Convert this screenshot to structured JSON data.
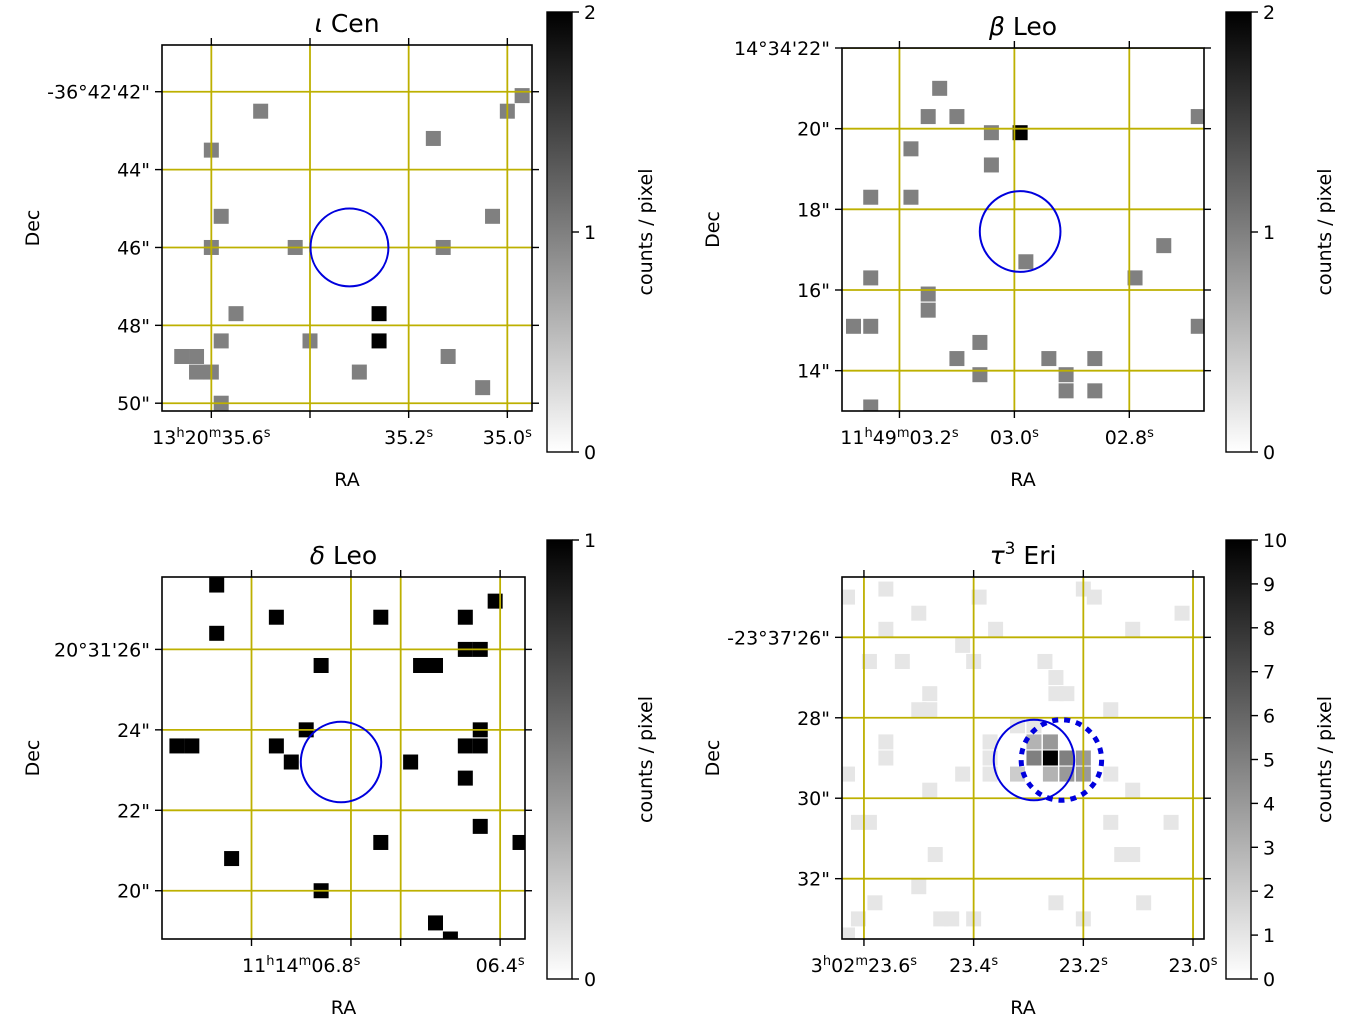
{
  "chart_data": [
    {
      "type": "heatmap",
      "title": "ι Cen",
      "title_symbol": "ι",
      "title_rest": " Cen",
      "xlabel": "RA",
      "ylabel": "Dec",
      "xticks": [
        {
          "label": "13h20m35.6s",
          "ra_s": 35.6
        },
        {
          "label": "35.2s",
          "ra_s": 35.2
        },
        {
          "label": "35.0s",
          "ra_s": 35.0
        }
      ],
      "xgrid_ra_s": [
        35.6,
        35.4,
        35.2,
        35.0
      ],
      "xlim_ra_s": [
        35.7,
        34.95
      ],
      "ylim_dec_arcsec": [
        50.2,
        40.8
      ],
      "yticks": [
        {
          "label": "-36°42'42\"",
          "dec": 42
        },
        {
          "label": "44\"",
          "dec": 44
        },
        {
          "label": "46\"",
          "dec": 46
        },
        {
          "label": "48\"",
          "dec": 48
        },
        {
          "label": "50\"",
          "dec": 50
        }
      ],
      "source_circle": {
        "ra_s": 35.32,
        "dec": 46.0,
        "radius_arcsec": 1.0
      },
      "colorbar": {
        "label": "counts / pixel",
        "min": 0,
        "max": 2,
        "ticks": [
          0,
          1,
          2
        ]
      },
      "grid": true,
      "pixels": [
        {
          "ra_s": 34.97,
          "dec": 42.1,
          "v": 1
        },
        {
          "ra_s": 35.5,
          "dec": 42.5,
          "v": 1
        },
        {
          "ra_s": 35.0,
          "dec": 42.5,
          "v": 1
        },
        {
          "ra_s": 35.15,
          "dec": 43.2,
          "v": 1
        },
        {
          "ra_s": 35.6,
          "dec": 43.5,
          "v": 1
        },
        {
          "ra_s": 35.58,
          "dec": 45.2,
          "v": 1
        },
        {
          "ra_s": 35.03,
          "dec": 45.2,
          "v": 1
        },
        {
          "ra_s": 35.6,
          "dec": 46.0,
          "v": 1
        },
        {
          "ra_s": 35.43,
          "dec": 46.0,
          "v": 1
        },
        {
          "ra_s": 35.13,
          "dec": 46.0,
          "v": 1
        },
        {
          "ra_s": 35.26,
          "dec": 47.7,
          "v": 2
        },
        {
          "ra_s": 35.55,
          "dec": 47.7,
          "v": 1
        },
        {
          "ra_s": 35.58,
          "dec": 48.4,
          "v": 1
        },
        {
          "ra_s": 35.4,
          "dec": 48.4,
          "v": 1
        },
        {
          "ra_s": 35.26,
          "dec": 48.4,
          "v": 2
        },
        {
          "ra_s": 35.66,
          "dec": 48.8,
          "v": 1
        },
        {
          "ra_s": 35.63,
          "dec": 48.8,
          "v": 1
        },
        {
          "ra_s": 35.12,
          "dec": 48.8,
          "v": 1
        },
        {
          "ra_s": 35.63,
          "dec": 49.2,
          "v": 1
        },
        {
          "ra_s": 35.6,
          "dec": 49.2,
          "v": 1
        },
        {
          "ra_s": 35.3,
          "dec": 49.2,
          "v": 1
        },
        {
          "ra_s": 35.05,
          "dec": 49.6,
          "v": 1
        },
        {
          "ra_s": 35.58,
          "dec": 50.0,
          "v": 1
        }
      ]
    },
    {
      "type": "heatmap",
      "title": "β Leo",
      "title_symbol": "β",
      "title_rest": " Leo",
      "xlabel": "RA",
      "ylabel": "Dec",
      "xticks": [
        {
          "label": "11h49m03.2s",
          "ra_s": 3.2
        },
        {
          "label": "03.0s",
          "ra_s": 3.0
        },
        {
          "label": "02.8s",
          "ra_s": 2.8
        }
      ],
      "xgrid_ra_s": [
        3.2,
        3.0,
        2.8
      ],
      "xlim_ra_s": [
        3.3,
        2.67
      ],
      "ylim_dec_arcsec": [
        13.0,
        22.0
      ],
      "yticks": [
        {
          "label": "14°34'22\"",
          "dec": 22
        },
        {
          "label": "20\"",
          "dec": 20
        },
        {
          "label": "18\"",
          "dec": 18
        },
        {
          "label": "16\"",
          "dec": 16
        },
        {
          "label": "14\"",
          "dec": 14
        }
      ],
      "source_circle": {
        "ra_s": 2.99,
        "dec": 17.45,
        "radius_arcsec": 1.0
      },
      "colorbar": {
        "label": "counts / pixel",
        "min": 0,
        "max": 2,
        "ticks": [
          0,
          1,
          2
        ]
      },
      "grid": true,
      "pixels": [
        {
          "ra_s": 3.13,
          "dec": 21.0,
          "v": 1
        },
        {
          "ra_s": 3.15,
          "dec": 20.3,
          "v": 1
        },
        {
          "ra_s": 3.1,
          "dec": 20.3,
          "v": 1
        },
        {
          "ra_s": 2.68,
          "dec": 20.3,
          "v": 1
        },
        {
          "ra_s": 3.04,
          "dec": 19.9,
          "v": 1
        },
        {
          "ra_s": 2.99,
          "dec": 19.9,
          "v": 2
        },
        {
          "ra_s": 3.18,
          "dec": 19.5,
          "v": 1
        },
        {
          "ra_s": 3.04,
          "dec": 19.1,
          "v": 1
        },
        {
          "ra_s": 3.25,
          "dec": 18.3,
          "v": 1
        },
        {
          "ra_s": 3.18,
          "dec": 18.3,
          "v": 1
        },
        {
          "ra_s": 2.74,
          "dec": 17.1,
          "v": 1
        },
        {
          "ra_s": 2.98,
          "dec": 16.7,
          "v": 1
        },
        {
          "ra_s": 3.25,
          "dec": 16.3,
          "v": 1
        },
        {
          "ra_s": 2.79,
          "dec": 16.3,
          "v": 1
        },
        {
          "ra_s": 3.15,
          "dec": 15.9,
          "v": 1
        },
        {
          "ra_s": 3.15,
          "dec": 15.5,
          "v": 1
        },
        {
          "ra_s": 3.28,
          "dec": 15.1,
          "v": 1
        },
        {
          "ra_s": 3.25,
          "dec": 15.1,
          "v": 1
        },
        {
          "ra_s": 2.68,
          "dec": 15.1,
          "v": 1
        },
        {
          "ra_s": 3.06,
          "dec": 14.7,
          "v": 1
        },
        {
          "ra_s": 3.1,
          "dec": 14.3,
          "v": 1
        },
        {
          "ra_s": 2.94,
          "dec": 14.3,
          "v": 1
        },
        {
          "ra_s": 2.86,
          "dec": 14.3,
          "v": 1
        },
        {
          "ra_s": 3.06,
          "dec": 13.9,
          "v": 1
        },
        {
          "ra_s": 2.91,
          "dec": 13.9,
          "v": 1
        },
        {
          "ra_s": 2.91,
          "dec": 13.5,
          "v": 1
        },
        {
          "ra_s": 2.86,
          "dec": 13.5,
          "v": 1
        },
        {
          "ra_s": 3.25,
          "dec": 13.1,
          "v": 1
        }
      ]
    },
    {
      "type": "heatmap",
      "title": "δ Leo",
      "title_symbol": "δ",
      "title_rest": " Leo",
      "xlabel": "RA",
      "ylabel": "Dec",
      "xticks": [
        {
          "label": "11h14m06.8s",
          "ra_s": 6.8
        },
        {
          "label": "06.4s",
          "ra_s": 6.4
        }
      ],
      "xgrid_ra_s": [
        6.9,
        6.7,
        6.6,
        6.4
      ],
      "xlim_ra_s": [
        7.08,
        6.35
      ],
      "ylim_dec_arcsec": [
        18.8,
        27.8
      ],
      "yticks": [
        {
          "label": "20°31'26\"",
          "dec": 26
        },
        {
          "label": "24\"",
          "dec": 24
        },
        {
          "label": "22\"",
          "dec": 22
        },
        {
          "label": "20\"",
          "dec": 20
        }
      ],
      "source_circle": {
        "ra_s": 6.72,
        "dec": 23.2,
        "radius_arcsec": 1.0
      },
      "colorbar": {
        "label": "counts / pixel",
        "min": 0,
        "max": 1,
        "ticks": [
          0,
          1
        ]
      },
      "grid": true,
      "pixels": [
        {
          "ra_s": 6.97,
          "dec": 27.6,
          "v": 1
        },
        {
          "ra_s": 6.41,
          "dec": 27.2,
          "v": 1
        },
        {
          "ra_s": 6.85,
          "dec": 26.8,
          "v": 1
        },
        {
          "ra_s": 6.64,
          "dec": 26.8,
          "v": 1
        },
        {
          "ra_s": 6.47,
          "dec": 26.8,
          "v": 1
        },
        {
          "ra_s": 6.97,
          "dec": 26.4,
          "v": 1
        },
        {
          "ra_s": 6.47,
          "dec": 26.0,
          "v": 1
        },
        {
          "ra_s": 6.44,
          "dec": 26.0,
          "v": 1
        },
        {
          "ra_s": 6.76,
          "dec": 25.6,
          "v": 1
        },
        {
          "ra_s": 6.56,
          "dec": 25.6,
          "v": 1
        },
        {
          "ra_s": 6.53,
          "dec": 25.6,
          "v": 1
        },
        {
          "ra_s": 6.79,
          "dec": 24.0,
          "v": 1
        },
        {
          "ra_s": 6.44,
          "dec": 24.0,
          "v": 1
        },
        {
          "ra_s": 7.05,
          "dec": 23.6,
          "v": 1
        },
        {
          "ra_s": 7.02,
          "dec": 23.6,
          "v": 1
        },
        {
          "ra_s": 6.85,
          "dec": 23.6,
          "v": 1
        },
        {
          "ra_s": 6.47,
          "dec": 23.6,
          "v": 1
        },
        {
          "ra_s": 6.44,
          "dec": 23.6,
          "v": 1
        },
        {
          "ra_s": 6.82,
          "dec": 23.2,
          "v": 1
        },
        {
          "ra_s": 6.58,
          "dec": 23.2,
          "v": 1
        },
        {
          "ra_s": 6.47,
          "dec": 22.8,
          "v": 1
        },
        {
          "ra_s": 6.44,
          "dec": 21.6,
          "v": 1
        },
        {
          "ra_s": 6.64,
          "dec": 21.2,
          "v": 1
        },
        {
          "ra_s": 6.36,
          "dec": 21.2,
          "v": 1
        },
        {
          "ra_s": 6.94,
          "dec": 20.8,
          "v": 1
        },
        {
          "ra_s": 6.76,
          "dec": 20.0,
          "v": 1
        },
        {
          "ra_s": 6.53,
          "dec": 19.2,
          "v": 1
        },
        {
          "ra_s": 6.5,
          "dec": 18.8,
          "v": 1
        }
      ]
    },
    {
      "type": "heatmap",
      "title": "τ³ Eri",
      "title_symbol": "τ",
      "title_sup": "3",
      "title_rest": " Eri",
      "xlabel": "RA",
      "ylabel": "Dec",
      "xticks": [
        {
          "label": "3h02m23.6s",
          "ra_s": 23.6
        },
        {
          "label": "23.4s",
          "ra_s": 23.4
        },
        {
          "label": "23.2s",
          "ra_s": 23.2
        },
        {
          "label": "23.0s",
          "ra_s": 23.0
        }
      ],
      "xgrid_ra_s": [
        23.6,
        23.4,
        23.2,
        23.0
      ],
      "xlim_ra_s": [
        23.64,
        22.98
      ],
      "ylim_dec_arcsec": [
        33.5,
        24.5
      ],
      "yticks": [
        {
          "label": "-23°37'26\"",
          "dec": 26
        },
        {
          "label": "28\"",
          "dec": 28
        },
        {
          "label": "30\"",
          "dec": 30
        },
        {
          "label": "32\"",
          "dec": 32
        }
      ],
      "source_circle": {
        "ra_s": 23.29,
        "dec": 29.05,
        "radius_arcsec": 1.0
      },
      "proper_motion_circle": {
        "ra_s": 23.24,
        "dec": 29.05,
        "radius_arcsec": 1.0,
        "style": "dotted"
      },
      "colorbar": {
        "label": "counts / pixel",
        "min": 0,
        "max": 10,
        "ticks": [
          0,
          1,
          2,
          3,
          4,
          5,
          6,
          7,
          8,
          9,
          10
        ]
      },
      "grid": true,
      "pixels": [
        {
          "ra_s": 23.63,
          "dec": 25.0,
          "v": 1
        },
        {
          "ra_s": 23.56,
          "dec": 24.8,
          "v": 1
        },
        {
          "ra_s": 23.39,
          "dec": 25.0,
          "v": 1
        },
        {
          "ra_s": 23.2,
          "dec": 24.8,
          "v": 1
        },
        {
          "ra_s": 23.18,
          "dec": 25.0,
          "v": 1
        },
        {
          "ra_s": 23.5,
          "dec": 25.4,
          "v": 1
        },
        {
          "ra_s": 23.36,
          "dec": 25.8,
          "v": 1
        },
        {
          "ra_s": 23.02,
          "dec": 25.4,
          "v": 1
        },
        {
          "ra_s": 23.56,
          "dec": 25.8,
          "v": 1
        },
        {
          "ra_s": 23.11,
          "dec": 25.8,
          "v": 1
        },
        {
          "ra_s": 23.59,
          "dec": 26.6,
          "v": 1
        },
        {
          "ra_s": 23.53,
          "dec": 26.6,
          "v": 1
        },
        {
          "ra_s": 23.42,
          "dec": 26.2,
          "v": 1
        },
        {
          "ra_s": 23.4,
          "dec": 26.6,
          "v": 1
        },
        {
          "ra_s": 23.27,
          "dec": 26.6,
          "v": 1
        },
        {
          "ra_s": 23.25,
          "dec": 27.0,
          "v": 1
        },
        {
          "ra_s": 23.48,
          "dec": 27.4,
          "v": 1
        },
        {
          "ra_s": 23.5,
          "dec": 27.8,
          "v": 1
        },
        {
          "ra_s": 23.48,
          "dec": 27.8,
          "v": 1
        },
        {
          "ra_s": 23.25,
          "dec": 27.4,
          "v": 1
        },
        {
          "ra_s": 23.23,
          "dec": 27.4,
          "v": 1
        },
        {
          "ra_s": 23.15,
          "dec": 27.8,
          "v": 1
        },
        {
          "ra_s": 23.32,
          "dec": 28.2,
          "v": 1
        },
        {
          "ra_s": 23.29,
          "dec": 28.2,
          "v": 1
        },
        {
          "ra_s": 23.56,
          "dec": 28.6,
          "v": 1
        },
        {
          "ra_s": 23.56,
          "dec": 29.0,
          "v": 1
        },
        {
          "ra_s": 23.37,
          "dec": 28.6,
          "v": 1
        },
        {
          "ra_s": 23.37,
          "dec": 29.0,
          "v": 1
        },
        {
          "ra_s": 23.37,
          "dec": 29.4,
          "v": 1
        },
        {
          "ra_s": 23.42,
          "dec": 29.4,
          "v": 1
        },
        {
          "ra_s": 23.63,
          "dec": 29.4,
          "v": 1
        },
        {
          "ra_s": 23.48,
          "dec": 29.8,
          "v": 1
        },
        {
          "ra_s": 23.11,
          "dec": 29.8,
          "v": 1
        },
        {
          "ra_s": 23.15,
          "dec": 29.4,
          "v": 1
        },
        {
          "ra_s": 23.29,
          "dec": 28.6,
          "v": 3
        },
        {
          "ra_s": 23.26,
          "dec": 28.6,
          "v": 4
        },
        {
          "ra_s": 23.29,
          "dec": 29.0,
          "v": 5
        },
        {
          "ra_s": 23.26,
          "dec": 29.0,
          "v": 10
        },
        {
          "ra_s": 23.23,
          "dec": 29.0,
          "v": 5
        },
        {
          "ra_s": 23.2,
          "dec": 29.0,
          "v": 4
        },
        {
          "ra_s": 23.26,
          "dec": 29.4,
          "v": 3
        },
        {
          "ra_s": 23.23,
          "dec": 29.4,
          "v": 4
        },
        {
          "ra_s": 23.2,
          "dec": 29.4,
          "v": 4
        },
        {
          "ra_s": 23.32,
          "dec": 29.4,
          "v": 2
        },
        {
          "ra_s": 23.61,
          "dec": 30.6,
          "v": 1
        },
        {
          "ra_s": 23.59,
          "dec": 30.6,
          "v": 1
        },
        {
          "ra_s": 23.15,
          "dec": 30.6,
          "v": 1
        },
        {
          "ra_s": 23.04,
          "dec": 30.6,
          "v": 1
        },
        {
          "ra_s": 23.47,
          "dec": 31.4,
          "v": 1
        },
        {
          "ra_s": 23.13,
          "dec": 31.4,
          "v": 1
        },
        {
          "ra_s": 23.11,
          "dec": 31.4,
          "v": 1
        },
        {
          "ra_s": 23.5,
          "dec": 32.2,
          "v": 1
        },
        {
          "ra_s": 23.61,
          "dec": 33.0,
          "v": 1
        },
        {
          "ra_s": 23.46,
          "dec": 33.0,
          "v": 1
        },
        {
          "ra_s": 23.44,
          "dec": 33.0,
          "v": 1
        },
        {
          "ra_s": 23.4,
          "dec": 33.0,
          "v": 1
        },
        {
          "ra_s": 23.58,
          "dec": 32.6,
          "v": 1
        },
        {
          "ra_s": 23.25,
          "dec": 32.6,
          "v": 1
        },
        {
          "ra_s": 23.09,
          "dec": 32.6,
          "v": 1
        },
        {
          "ra_s": 23.63,
          "dec": 33.4,
          "v": 1
        },
        {
          "ra_s": 23.2,
          "dec": 33.0,
          "v": 1
        }
      ]
    }
  ]
}
